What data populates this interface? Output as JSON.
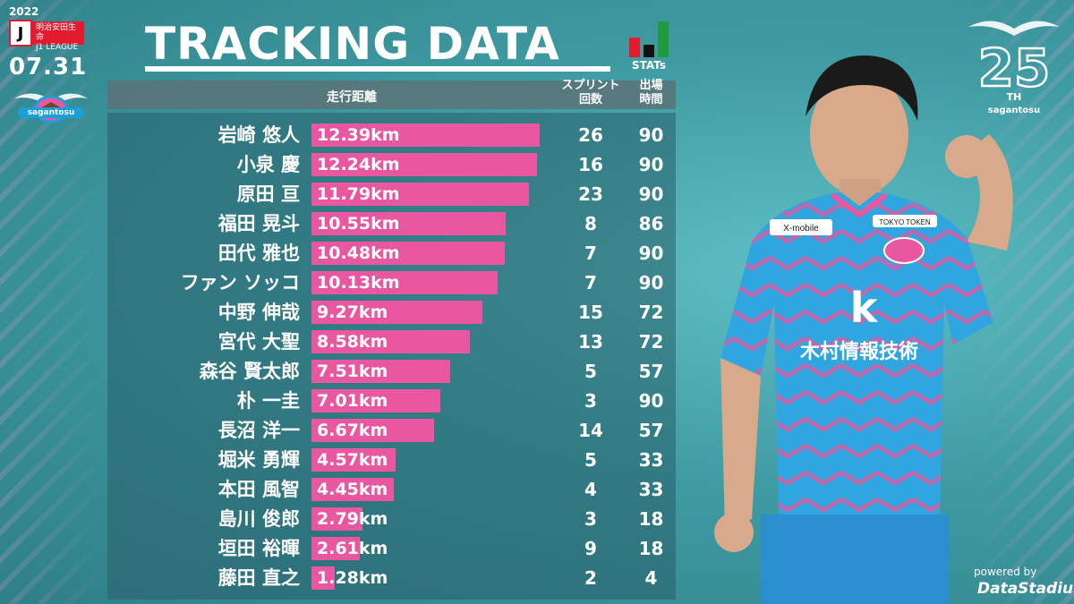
{
  "header": {
    "year": "2022",
    "league_line1": "明治安田生命",
    "league_line2": "J1 LEAGUE",
    "league_mark": "J",
    "date": "07.31",
    "club": "sagantosu",
    "title": "TRACKING DATA",
    "stats_label": "STATs"
  },
  "anniversary": {
    "number": "25",
    "suffix": "TH",
    "club": "sagantosu"
  },
  "table": {
    "col_distance": "走行距離",
    "col_sprint_line1": "スプリント",
    "col_sprint_line2": "回数",
    "col_minutes_line1": "出場",
    "col_minutes_line2": "時間"
  },
  "chart_data": {
    "type": "bar",
    "unit": "km",
    "rows": [
      {
        "name": "岩崎 悠人",
        "distance": 12.39,
        "label": "12.39km",
        "sprints": "26",
        "minutes": "90"
      },
      {
        "name": "小泉 慶",
        "distance": 12.24,
        "label": "12.24km",
        "sprints": "16",
        "minutes": "90"
      },
      {
        "name": "原田 亘",
        "distance": 11.79,
        "label": "11.79km",
        "sprints": "23",
        "minutes": "90"
      },
      {
        "name": "福田 晃斗",
        "distance": 10.55,
        "label": "10.55km",
        "sprints": "8",
        "minutes": "86"
      },
      {
        "name": "田代 雅也",
        "distance": 10.48,
        "label": "10.48km",
        "sprints": "7",
        "minutes": "90"
      },
      {
        "name": "ファン ソッコ",
        "distance": 10.13,
        "label": "10.13km",
        "sprints": "7",
        "minutes": "90"
      },
      {
        "name": "中野 伸哉",
        "distance": 9.27,
        "label": "9.27km",
        "sprints": "15",
        "minutes": "72"
      },
      {
        "name": "宮代 大聖",
        "distance": 8.58,
        "label": "8.58km",
        "sprints": "13",
        "minutes": "72"
      },
      {
        "name": "森谷 賢太郎",
        "distance": 7.51,
        "label": "7.51km",
        "sprints": "5",
        "minutes": "57"
      },
      {
        "name": "朴 一圭",
        "distance": 7.01,
        "label": "7.01km",
        "sprints": "3",
        "minutes": "90"
      },
      {
        "name": "長沼 洋一",
        "distance": 6.67,
        "label": "6.67km",
        "sprints": "14",
        "minutes": "57"
      },
      {
        "name": "堀米 勇輝",
        "distance": 4.57,
        "label": "4.57km",
        "sprints": "5",
        "minutes": "33"
      },
      {
        "name": "本田 風智",
        "distance": 4.45,
        "label": "4.45km",
        "sprints": "4",
        "minutes": "33"
      },
      {
        "name": "島川 俊郎",
        "distance": 2.79,
        "label": "2.79km",
        "sprints": "3",
        "minutes": "18"
      },
      {
        "name": "垣田 裕暉",
        "distance": 2.61,
        "label": "2.61km",
        "sprints": "9",
        "minutes": "18"
      },
      {
        "name": "藤田 直之",
        "distance": 1.28,
        "label": "1.28km",
        "sprints": "2",
        "minutes": "4"
      }
    ],
    "bar_color": "#e8579f",
    "xlim": [
      0,
      12.39
    ]
  },
  "jersey": {
    "sponsor_top": "X-mobile",
    "sponsor_main": "木村情報技術",
    "sponsor_main_logo": "k",
    "sleeve_sponsor": "TOKYO TOKEN"
  },
  "footer": {
    "powered_by": "powered by",
    "provider": "DataStadium"
  },
  "colors": {
    "bar": "#e8579f",
    "background": "#4aa3a9",
    "jersey": "#2fa6e0",
    "jersey_accent": "#e8579f"
  }
}
